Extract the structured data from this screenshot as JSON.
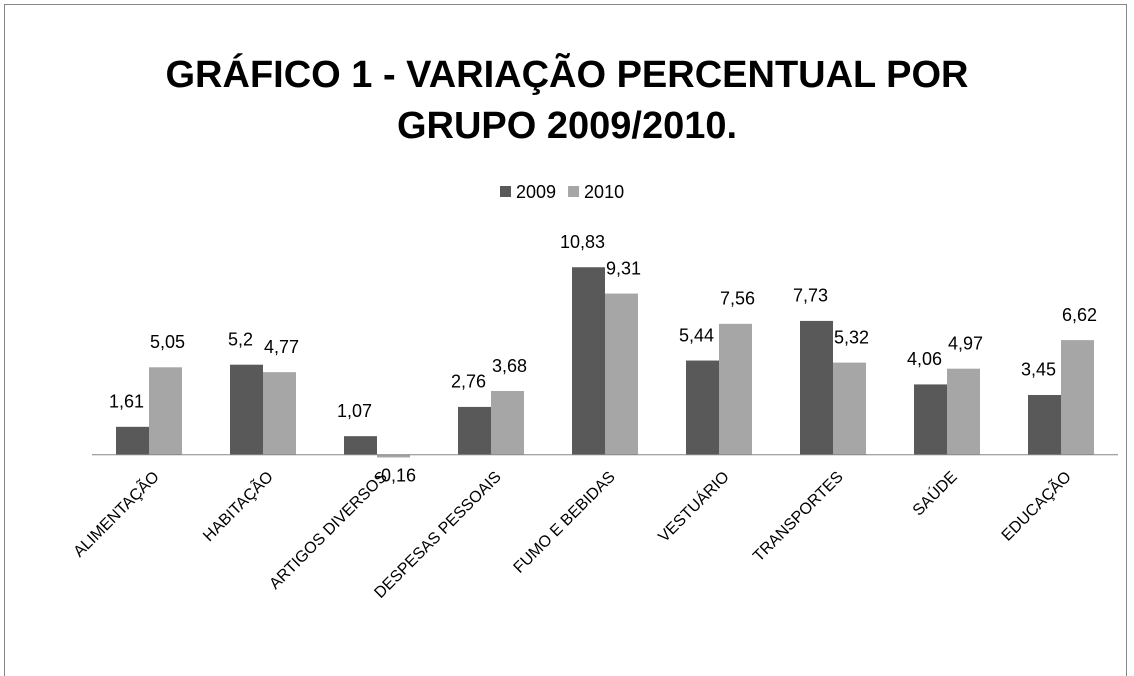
{
  "chart_data": {
    "type": "bar",
    "title": "GRÁFICO 1 - VARIAÇÃO PERCENTUAL POR GRUPO 2009/2010.",
    "categories": [
      "ALIMENTAÇÃO",
      "HABITAÇÃO",
      "ARTIGOS DIVERSOS",
      "DESPESAS PESSOAIS",
      "FUMO E BEBIDAS",
      "VESTUÁRIO",
      "TRANSPORTES",
      "SAÚDE",
      "EDUCAÇÃO"
    ],
    "series": [
      {
        "name": "2009",
        "color": "#595959",
        "values": [
          1.61,
          5.2,
          1.07,
          2.76,
          10.83,
          5.44,
          7.73,
          4.06,
          3.45
        ],
        "value_labels": [
          "1,61",
          "5,2",
          "1,07",
          "2,76",
          "10,83",
          "5,44",
          "7,73",
          "4,06",
          "3,45"
        ]
      },
      {
        "name": "2010",
        "color": "#a6a6a6",
        "values": [
          5.05,
          4.77,
          -0.16,
          3.68,
          9.31,
          7.56,
          5.32,
          4.97,
          6.62
        ],
        "value_labels": [
          "5,05",
          "4,77",
          "-0,16",
          "3,68",
          "9,31",
          "7,56",
          "5,32",
          "4,97",
          "6,62"
        ]
      }
    ],
    "ylim": [
      -1,
      12
    ],
    "legend": "top"
  }
}
